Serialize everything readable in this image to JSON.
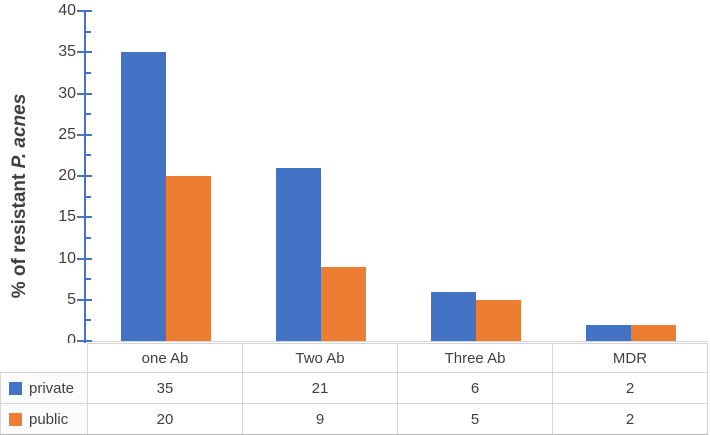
{
  "chart_data": {
    "type": "bar",
    "title": "",
    "categories": [
      "one Ab",
      "Two Ab",
      "Three Ab",
      "MDR"
    ],
    "series": [
      {
        "name": "private",
        "values": [
          35,
          21,
          6,
          2
        ],
        "color": "#4472C4"
      },
      {
        "name": "public",
        "values": [
          20,
          9,
          5,
          2
        ],
        "color": "#ED7D31"
      }
    ],
    "ylabel_prefix": "% of resistant ",
    "ylabel_italic": "P. acnes",
    "xlabel": "",
    "ylim": [
      0,
      40
    ],
    "yticks": [
      40,
      35,
      30,
      25,
      20,
      15,
      10,
      5,
      0
    ],
    "minor_tick_step": 2.5,
    "grid": false,
    "legend_position": "data-table-left",
    "colors": {
      "axis": "#4472C4",
      "table_border": "#D6D6D6",
      "text": "#3F3F3F",
      "background": "#FFFFFF"
    }
  }
}
